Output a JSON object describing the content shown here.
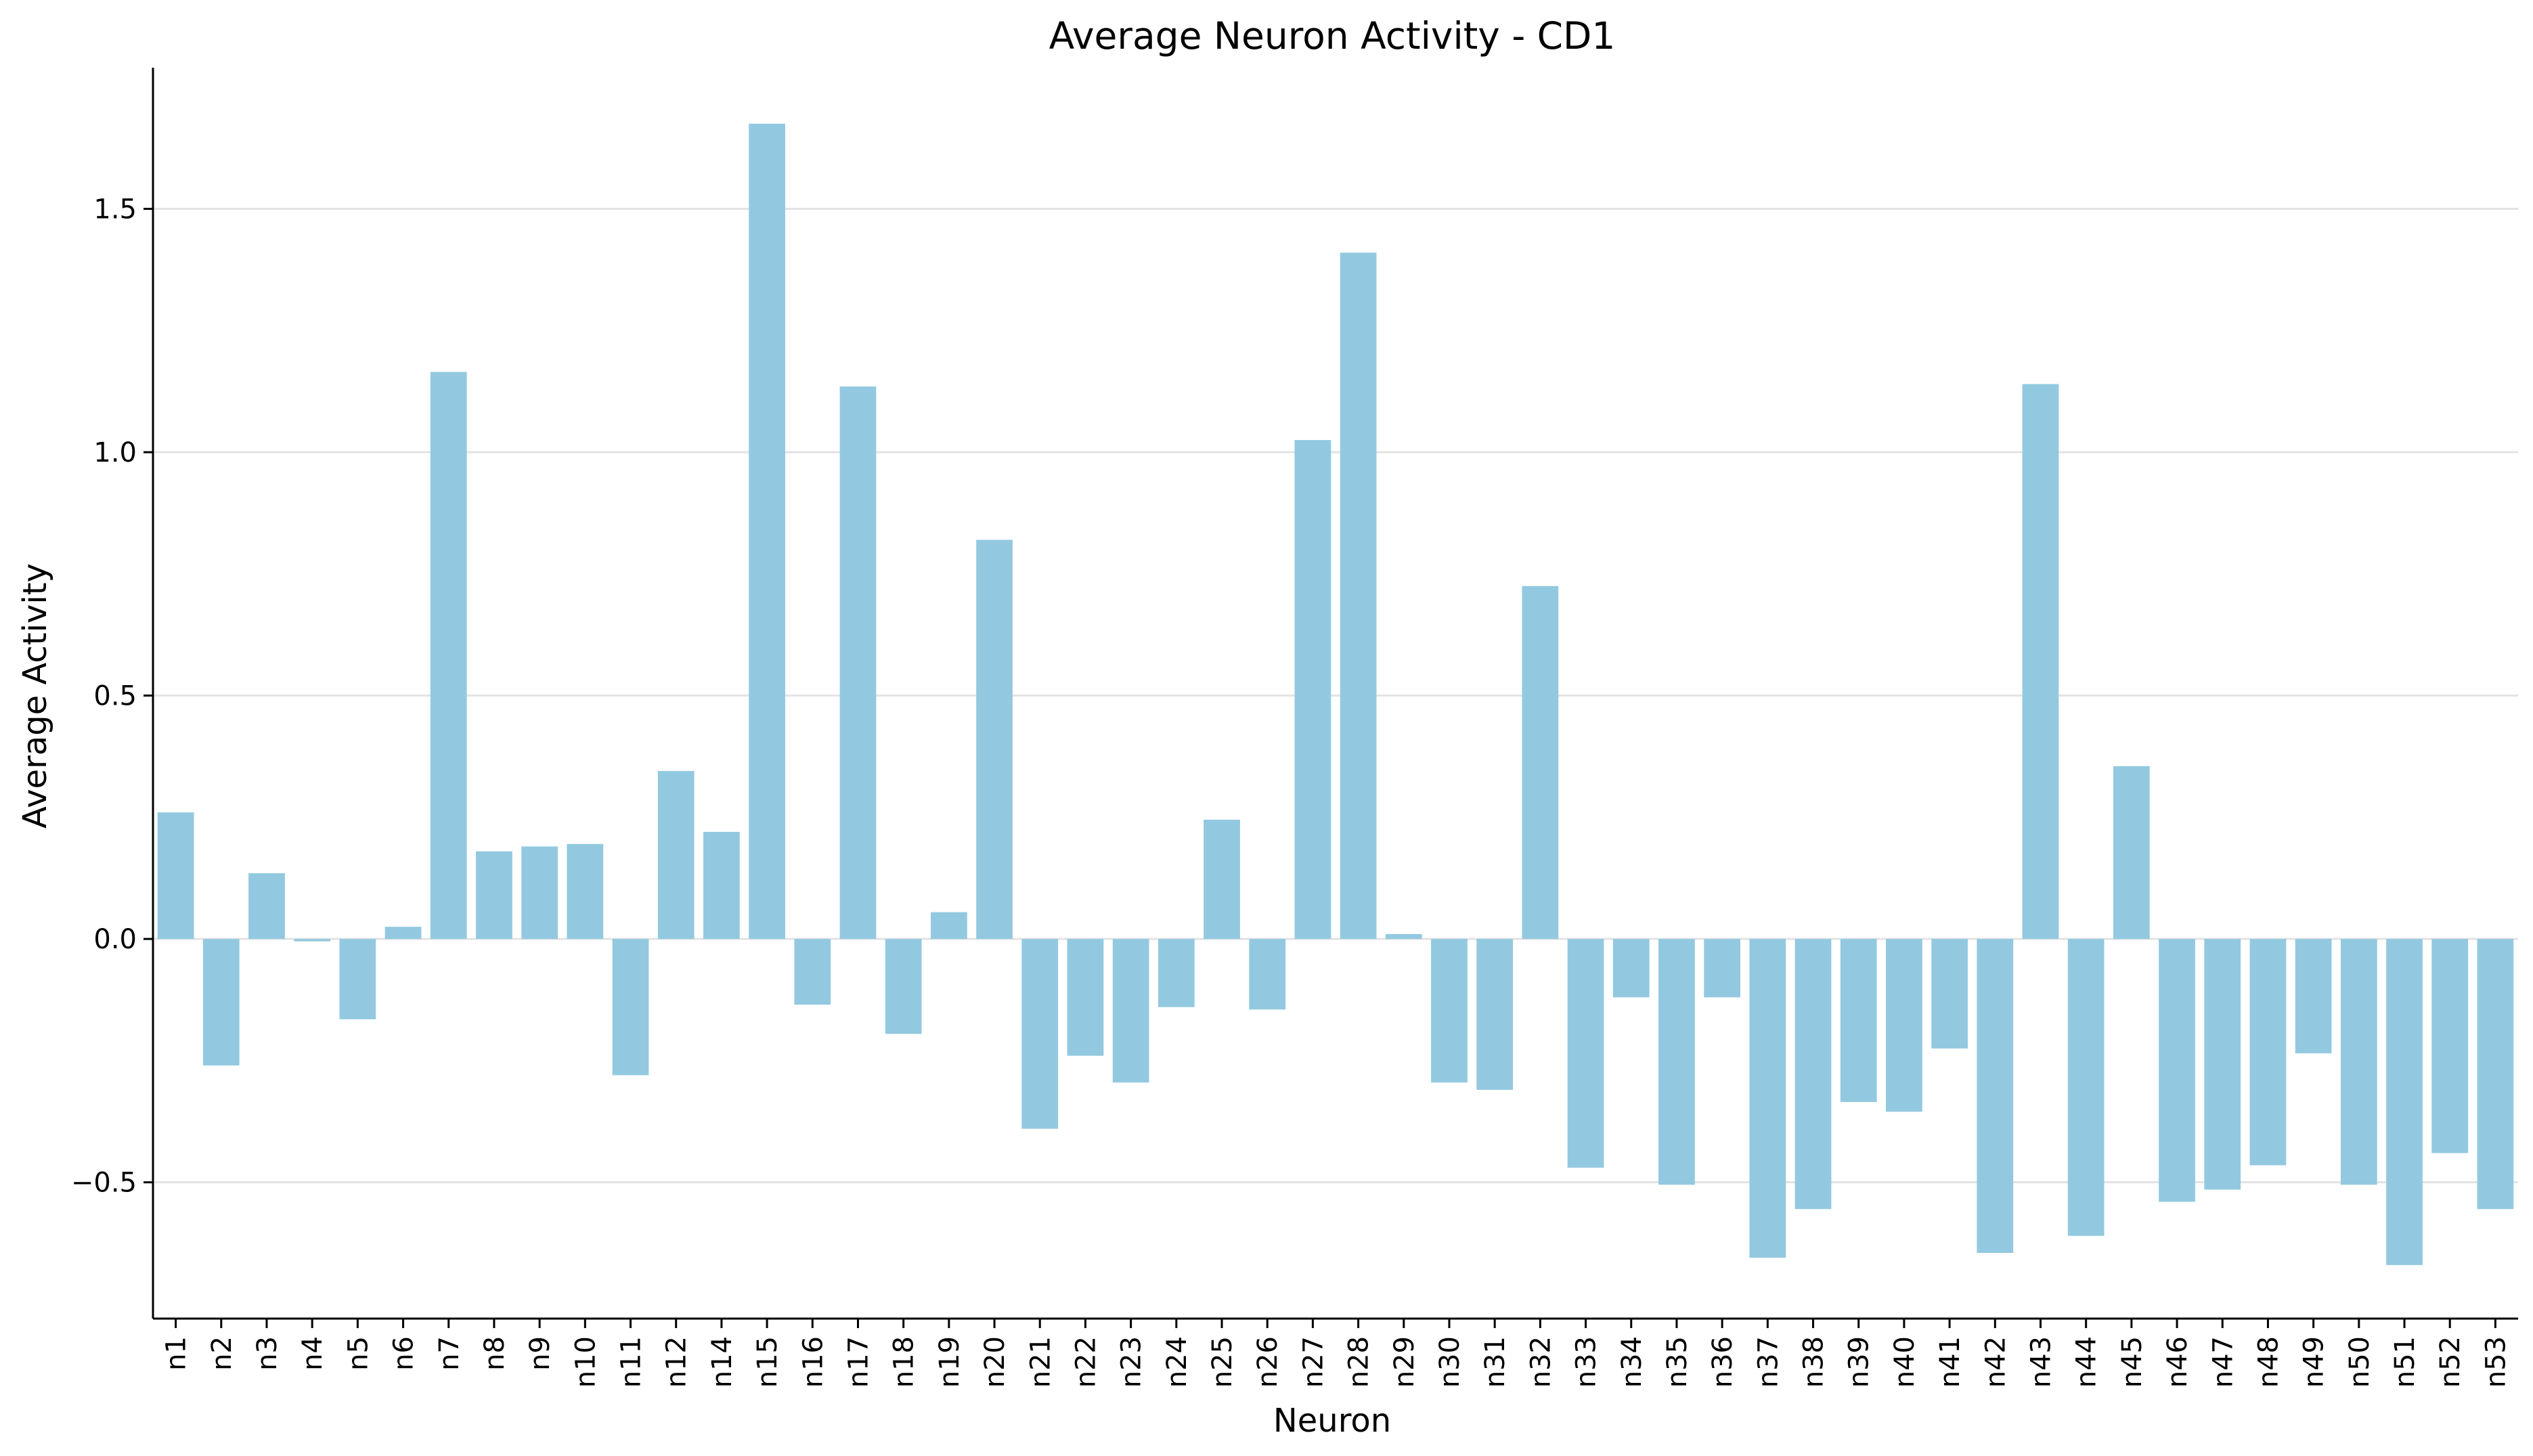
{
  "chart_data": {
    "type": "bar",
    "title": "Average Neuron Activity - CD1",
    "xlabel": "Neuron",
    "ylabel": "Average Activity",
    "ylim": [
      -0.78,
      1.79
    ],
    "yticks": [
      -0.5,
      0.0,
      0.5,
      1.0,
      1.5
    ],
    "ytick_labels": [
      "−0.5",
      "0.0",
      "0.5",
      "1.0",
      "1.5"
    ],
    "grid": "horizontal",
    "bar_color": "#92c9e0",
    "categories": [
      "n1",
      "n2",
      "n3",
      "n4",
      "n5",
      "n6",
      "n7",
      "n8",
      "n9",
      "n10",
      "n11",
      "n12",
      "n14",
      "n15",
      "n16",
      "n17",
      "n18",
      "n19",
      "n20",
      "n21",
      "n22",
      "n23",
      "n24",
      "n25",
      "n26",
      "n27",
      "n28",
      "n29",
      "n30",
      "n31",
      "n32",
      "n33",
      "n34",
      "n35",
      "n36",
      "n37",
      "n38",
      "n39",
      "n40",
      "n41",
      "n42",
      "n43",
      "n44",
      "n45",
      "n46",
      "n47",
      "n48",
      "n49",
      "n50",
      "n51",
      "n52",
      "n53"
    ],
    "values": [
      0.26,
      -0.26,
      0.135,
      -0.005,
      -0.165,
      0.025,
      1.165,
      0.18,
      0.19,
      0.195,
      -0.28,
      0.345,
      0.22,
      1.675,
      -0.135,
      1.135,
      -0.195,
      0.055,
      0.82,
      -0.39,
      -0.24,
      -0.295,
      -0.14,
      0.245,
      -0.145,
      1.025,
      1.41,
      0.01,
      -0.295,
      -0.31,
      0.725,
      -0.47,
      -0.12,
      -0.505,
      -0.12,
      -0.655,
      -0.555,
      -0.335,
      -0.355,
      -0.225,
      -0.645,
      1.14,
      -0.61,
      0.355,
      -0.54,
      -0.515,
      -0.465,
      -0.235,
      -0.505,
      -0.67,
      -0.44,
      -0.555
    ]
  }
}
